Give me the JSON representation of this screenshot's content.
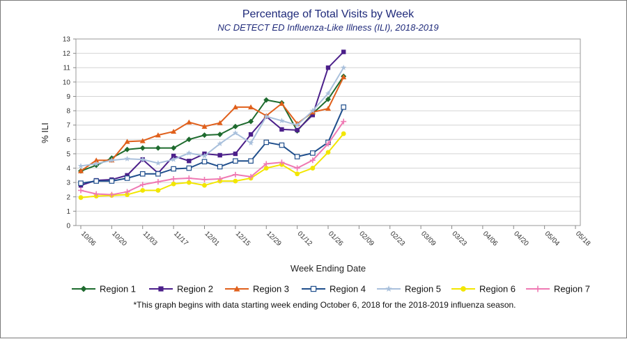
{
  "chart_data": {
    "type": "line",
    "title": "Percentage of Total Visits by Week",
    "subtitle": "NC DETECT ED Influenza-Like Illness (ILI), 2018-2019",
    "xlabel": "Week Ending Date",
    "ylabel": "% ILI",
    "ylim": [
      0,
      13
    ],
    "yticks": [
      0,
      1,
      2,
      3,
      4,
      5,
      6,
      7,
      8,
      9,
      10,
      11,
      12,
      13
    ],
    "grid": true,
    "legend": "bottom",
    "footnote": "*This graph begins with data starting week ending October 6, 2018 for the 2018-2019 influenza season.",
    "x_labels": [
      "10/06",
      "10/20",
      "11/03",
      "11/17",
      "12/01",
      "12/15",
      "12/29",
      "01/12",
      "01/26",
      "02/09",
      "02/23",
      "03/09",
      "03/23",
      "04/06",
      "04/20",
      "05/04",
      "05/18"
    ],
    "x_label_week_index": [
      0,
      2,
      4,
      6,
      8,
      10,
      12,
      14,
      16,
      18,
      20,
      22,
      24,
      26,
      28,
      30,
      32
    ],
    "x_week_count": 33,
    "series": [
      {
        "name": "Region 1",
        "color": "#1e6b2e",
        "marker": "diamond",
        "values": [
          3.8,
          4.2,
          4.7,
          5.3,
          5.4,
          5.4,
          5.4,
          6.0,
          6.3,
          6.35,
          6.9,
          7.25,
          8.75,
          8.55,
          6.6,
          7.8,
          8.8,
          10.4
        ]
      },
      {
        "name": "Region 2",
        "color": "#4b1f8a",
        "marker": "square-filled",
        "values": [
          2.8,
          3.15,
          3.2,
          3.5,
          4.6,
          3.65,
          4.85,
          4.5,
          5.0,
          4.9,
          5.0,
          6.35,
          7.6,
          6.7,
          6.65,
          7.7,
          11.0,
          12.1
        ]
      },
      {
        "name": "Region 3",
        "color": "#e0601c",
        "marker": "triangle",
        "values": [
          3.8,
          4.55,
          4.55,
          5.85,
          5.9,
          6.3,
          6.55,
          7.2,
          6.9,
          7.15,
          8.25,
          8.25,
          7.65,
          8.5,
          7.1,
          7.9,
          8.15,
          10.35
        ]
      },
      {
        "name": "Region 4",
        "color": "#1f4e8c",
        "marker": "square-open",
        "values": [
          2.95,
          3.1,
          3.1,
          3.3,
          3.6,
          3.6,
          3.95,
          4.0,
          4.45,
          4.1,
          4.5,
          4.5,
          5.8,
          5.6,
          4.8,
          5.05,
          5.8,
          8.25
        ]
      },
      {
        "name": "Region 5",
        "color": "#a9c0dc",
        "marker": "star",
        "values": [
          4.15,
          4.3,
          4.55,
          4.65,
          4.6,
          4.35,
          4.6,
          5.05,
          4.85,
          5.7,
          6.45,
          5.75,
          7.6,
          7.3,
          7.0,
          8.0,
          9.2,
          11.0
        ]
      },
      {
        "name": "Region 6",
        "color": "#f2e600",
        "marker": "circle",
        "values": [
          1.95,
          2.05,
          2.1,
          2.15,
          2.45,
          2.45,
          2.9,
          3.0,
          2.8,
          3.1,
          3.1,
          3.3,
          4.0,
          4.25,
          3.6,
          4.0,
          5.1,
          6.4
        ]
      },
      {
        "name": "Region 7",
        "color": "#ef79b3",
        "marker": "plus",
        "values": [
          2.45,
          2.2,
          2.15,
          2.35,
          2.85,
          3.05,
          3.25,
          3.3,
          3.2,
          3.25,
          3.55,
          3.4,
          4.3,
          4.4,
          4.0,
          4.55,
          5.7,
          7.25
        ]
      }
    ]
  }
}
